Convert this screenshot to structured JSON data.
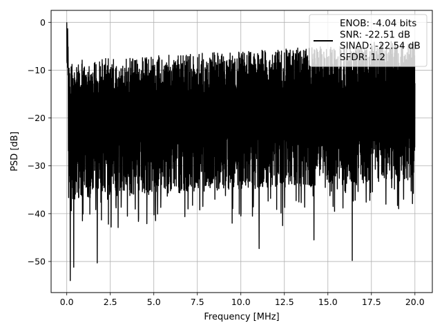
{
  "chart_data": {
    "type": "line",
    "title": "",
    "xlabel": "Frequency [MHz]",
    "ylabel": "PSD [dB]",
    "xlim": [
      -0.9,
      21.0
    ],
    "ylim": [
      -56.5,
      2.5
    ],
    "xticks": [
      0.0,
      2.5,
      5.0,
      7.5,
      10.0,
      12.5,
      15.0,
      17.5,
      20.0
    ],
    "xtick_labels": [
      "0.0",
      "2.5",
      "5.0",
      "7.5",
      "10.0",
      "12.5",
      "15.0",
      "17.5",
      "20.0"
    ],
    "yticks": [
      0,
      -10,
      -20,
      -30,
      -40,
      -50
    ],
    "ytick_labels": [
      "0",
      "−10",
      "−20",
      "−30",
      "−40",
      "−50"
    ],
    "grid": true,
    "legend_placement": "upper-right",
    "series": [
      {
        "name": "ENOB: -4.04 bits\nSNR: -22.51 dB\nSINAD: -22.54 dB\nSFDR: 1.2",
        "color": "#000000",
        "x_range": [
          0.0,
          20.0
        ],
        "noise_floor_db": -22,
        "noise_envelope_db": [
          -36,
          -8
        ],
        "peak": {
          "x": 0.0,
          "y": 0.0
        },
        "dips": [
          {
            "x": 0.2,
            "y": -54.0
          },
          {
            "x": 0.4,
            "y": -51.2
          },
          {
            "x": 1.75,
            "y": -50.3
          },
          {
            "x": 16.4,
            "y": -49.8
          },
          {
            "x": 11.05,
            "y": -47.3
          },
          {
            "x": 14.2,
            "y": -45.5
          },
          {
            "x": 0.9,
            "y": -41.5
          },
          {
            "x": 2.55,
            "y": -42.8
          },
          {
            "x": 2.95,
            "y": -42.9
          },
          {
            "x": 4.6,
            "y": -42.1
          },
          {
            "x": 5.4,
            "y": -38.7
          },
          {
            "x": 9.5,
            "y": -42.0
          },
          {
            "x": 10.0,
            "y": -40.5
          },
          {
            "x": 12.4,
            "y": -42.5
          },
          {
            "x": 15.3,
            "y": -38.5
          },
          {
            "x": 17.2,
            "y": -37.6
          },
          {
            "x": 19.0,
            "y": -38.3
          }
        ]
      }
    ]
  }
}
